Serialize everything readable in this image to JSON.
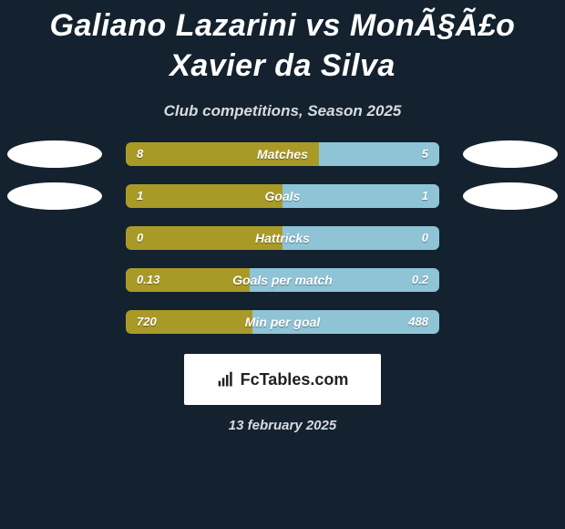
{
  "title": "Galiano Lazarini vs MonÃ§Ã£o Xavier da Silva",
  "subtitle": "Club competitions, Season 2025",
  "date": "13 february 2025",
  "logo_text": "FcTables.com",
  "colors": {
    "background": "#13222e",
    "title_color": "#ffffff",
    "subtitle_color": "#d9dbe0",
    "left_color": "#a99a28",
    "right_color": "#8fc4d7",
    "ellipse_color": "#ffffff",
    "bar_text_color": "#ffffff"
  },
  "rows": [
    {
      "label": "Matches",
      "left_value": "8",
      "right_value": "5",
      "left_pct": 61.5,
      "right_pct": 38.5,
      "show_ellipses": true
    },
    {
      "label": "Goals",
      "left_value": "1",
      "right_value": "1",
      "left_pct": 50,
      "right_pct": 50,
      "show_ellipses": true
    },
    {
      "label": "Hattricks",
      "left_value": "0",
      "right_value": "0",
      "left_pct": 50,
      "right_pct": 50,
      "show_ellipses": false
    },
    {
      "label": "Goals per match",
      "left_value": "0.13",
      "right_value": "0.2",
      "left_pct": 39.4,
      "right_pct": 60.6,
      "show_ellipses": false
    },
    {
      "label": "Min per goal",
      "left_value": "720",
      "right_value": "488",
      "left_pct": 40.4,
      "right_pct": 59.6,
      "show_ellipses": false
    }
  ]
}
